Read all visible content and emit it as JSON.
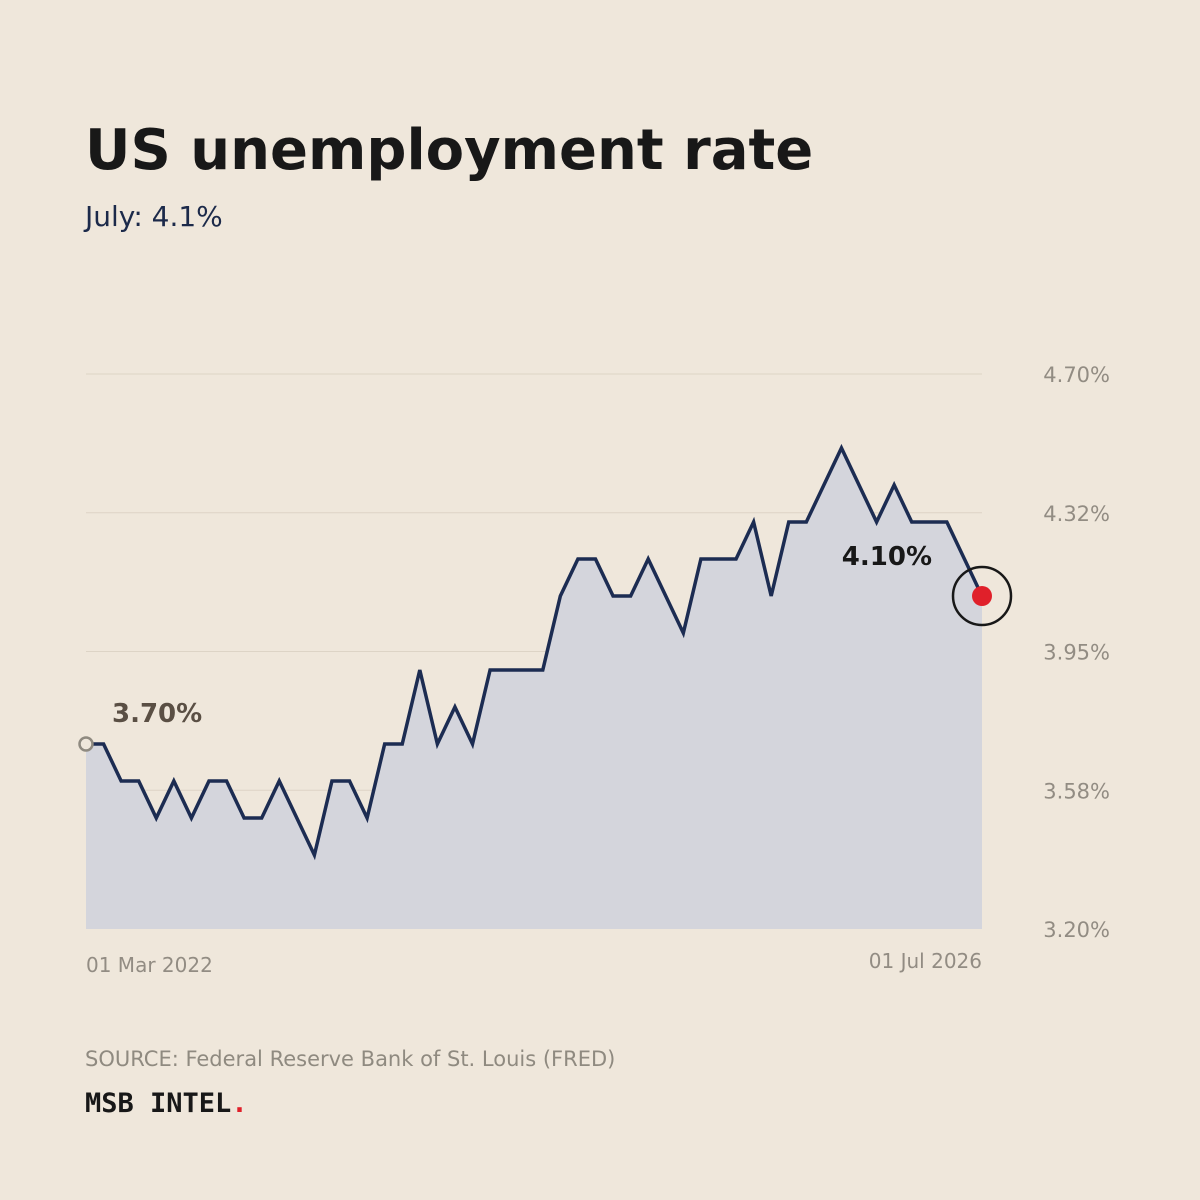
{
  "title": "US unemployment rate",
  "subtitle": "July: 4.1%",
  "source": "SOURCE: Federal Reserve Bank of St. Louis (FRED)",
  "brand": {
    "name": "MSB INTEL",
    "dot": "."
  },
  "colors": {
    "background": "#efe7db",
    "line": "#1c2c52",
    "area": "#d4d5dc",
    "grid": "#ddd4c6",
    "tick_text": "#928c83",
    "start_label": "#5a4f44",
    "end_label": "#181818",
    "end_marker": "#e0202a",
    "start_marker": "#8f8a80"
  },
  "chart_data": {
    "type": "area",
    "title": "US unemployment rate",
    "xlabel": "",
    "ylabel": "",
    "x_start": "01 Mar 2022",
    "x_end": "01 Jul 2026",
    "x_tick_labels": [
      "01 Mar 2022",
      "01 Jul 2026"
    ],
    "y_tick_labels": [
      "4.70%",
      "4.32%",
      "3.95%",
      "3.58%",
      "3.20%"
    ],
    "y_ticks": [
      4.7,
      4.325,
      3.95,
      3.575,
      3.2
    ],
    "ylim": [
      3.2,
      4.7
    ],
    "y_axis_side": "right",
    "grid": true,
    "legend": "none",
    "start_label": "3.70%",
    "end_label": "4.10%",
    "series": [
      {
        "values": [
          3.7,
          3.7,
          3.6,
          3.6,
          3.5,
          3.6,
          3.5,
          3.6,
          3.6,
          3.5,
          3.5,
          3.6,
          3.5,
          3.4,
          3.6,
          3.6,
          3.5,
          3.7,
          3.7,
          3.9,
          3.7,
          3.8,
          3.7,
          3.9,
          3.9,
          3.9,
          3.9,
          4.1,
          4.2,
          4.2,
          4.1,
          4.1,
          4.2,
          4.1,
          4.0,
          4.2,
          4.2,
          4.2,
          4.3,
          4.1,
          4.3,
          4.3,
          4.4,
          4.5,
          4.4,
          4.3,
          4.4,
          4.3,
          4.3,
          4.3,
          4.2,
          4.1
        ]
      }
    ]
  }
}
